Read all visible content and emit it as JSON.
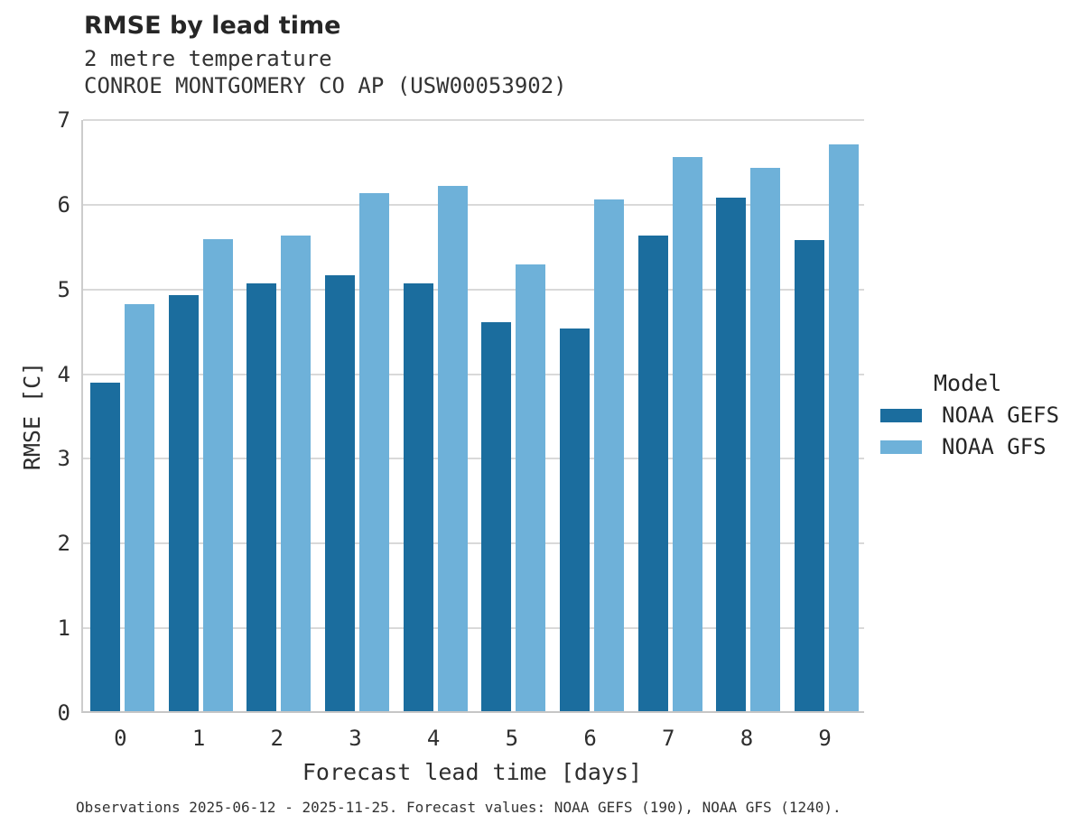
{
  "footer": {
    "text": "Observations 2025-06-12 - 2025-11-25. Forecast values: NOAA GEFS (190), NOAA GFS (1240)."
  },
  "chart_data": {
    "type": "bar",
    "title": "RMSE by lead time",
    "subtitle": "2 metre temperature",
    "station": "CONROE MONTGOMERY CO AP (USW00053902)",
    "xlabel": "Forecast lead time [days]",
    "ylabel": "RMSE [C]",
    "categories": [
      0,
      1,
      2,
      3,
      4,
      5,
      6,
      7,
      8,
      9
    ],
    "series": [
      {
        "name": "NOAA GEFS",
        "color": "#1b6d9e",
        "values": [
          3.88,
          4.91,
          5.05,
          5.15,
          5.05,
          4.59,
          4.52,
          5.62,
          6.06,
          5.56
        ]
      },
      {
        "name": "NOAA GFS",
        "color": "#6eb1d9",
        "values": [
          4.81,
          5.57,
          5.61,
          6.12,
          6.2,
          5.27,
          6.04,
          6.54,
          6.41,
          6.69
        ]
      }
    ],
    "ylim": [
      0,
      7
    ],
    "yticks": [
      0,
      1,
      2,
      3,
      4,
      5,
      6,
      7
    ],
    "grid": true,
    "grid_color": "#d9d9d9",
    "legend_title": "Model",
    "legend_position": "right"
  }
}
